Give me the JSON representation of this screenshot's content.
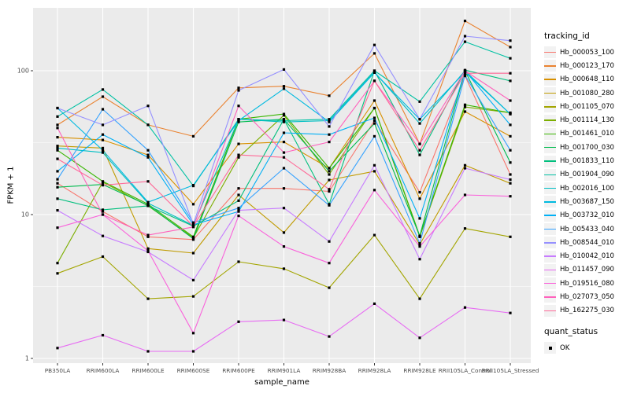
{
  "figure": {
    "y_axis": {
      "title": "FPKM + 1",
      "tick_labels": [
        "1",
        "10",
        "100"
      ]
    },
    "x_axis": {
      "title": "sample_name"
    },
    "legend": {
      "tracking_title": "tracking_id",
      "quant_title": "quant_status",
      "quant_item_label": "OK"
    },
    "colors": {
      "panel_background": "#EBEBEB",
      "gridline": "#FFFFFF",
      "axis_text": "#4D4D4D",
      "tick_mark": "#333333",
      "point": "#000000",
      "legend_key_background": "#F2F2F2"
    }
  },
  "chart_data": {
    "type": "line",
    "title": "",
    "xlabel": "sample_name",
    "ylabel": "FPKM + 1",
    "y_scale": "log10",
    "ylim": [
      1,
      300
    ],
    "y_major_ticks": [
      1,
      10,
      100
    ],
    "y_minor_ticks": [
      3.162,
      31.62
    ],
    "grid": true,
    "legend_position": "right",
    "point_marker": "filled-black-square",
    "quant_status": "OK",
    "categories": [
      "PB350LA",
      "RRIM600LA",
      "RRIM600LE",
      "RRIM600SE",
      "RRIM600PE",
      "RRIM901LA",
      "RRIM928BA",
      "RRIM928LA",
      "RRIM928LE",
      "RRII105LA_Control",
      "RRII105LA_Stressed"
    ],
    "series": [
      {
        "name": "Hb_000053_100",
        "color": "#F8766D",
        "values": [
          16.5,
          10.5,
          7.0,
          6.7,
          15.2,
          15.2,
          14.5,
          45,
          14.3,
          92,
          19
        ]
      },
      {
        "name": "Hb_000123_170",
        "color": "#EA8331",
        "values": [
          42,
          66,
          42,
          35,
          76,
          78,
          67,
          132,
          31,
          222,
          146
        ]
      },
      {
        "name": "Hb_000648_110",
        "color": "#D89000",
        "values": [
          34.5,
          33,
          26,
          11.8,
          31,
          32,
          21,
          62,
          12.9,
          52,
          35
        ]
      },
      {
        "name": "Hb_001080_280",
        "color": "#C09B00",
        "values": [
          30,
          29,
          5.8,
          5.4,
          13.7,
          7.5,
          17.4,
          20,
          6.2,
          22,
          16.5
        ]
      },
      {
        "name": "Hb_001105_070",
        "color": "#A3A500",
        "values": [
          3.9,
          5.1,
          2.6,
          2.7,
          4.7,
          4.2,
          3.1,
          7.2,
          2.6,
          8.0,
          7.0
        ]
      },
      {
        "name": "Hb_001114_130",
        "color": "#7CAE00",
        "values": [
          4.6,
          16.8,
          11.5,
          6.9,
          25,
          49,
          19,
          55,
          7.0,
          56,
          51
        ]
      },
      {
        "name": "Hb_001461_010",
        "color": "#39B600",
        "values": [
          28,
          17,
          11.8,
          7.0,
          46,
          50,
          21,
          55,
          7.1,
          58,
          51
        ]
      },
      {
        "name": "Hb_001700_030",
        "color": "#00BB4E",
        "values": [
          15.5,
          16.2,
          11.6,
          6.8,
          44,
          46,
          20,
          43,
          7.1,
          100,
          23
        ]
      },
      {
        "name": "Hb_001833_110",
        "color": "#00BF7D",
        "values": [
          12.9,
          10.8,
          11.5,
          8.3,
          12.5,
          46,
          11.8,
          100,
          26,
          101,
          85
        ]
      },
      {
        "name": "Hb_001904_090",
        "color": "#00C1A3",
        "values": [
          48,
          74,
          42,
          15.8,
          46,
          45,
          46,
          100,
          61,
          159,
          122
        ]
      },
      {
        "name": "Hb_002016_100",
        "color": "#00BFC4",
        "values": [
          29,
          27,
          12,
          8.4,
          46,
          44,
          45,
          98,
          43,
          100,
          50
        ]
      },
      {
        "name": "Hb_003687_150",
        "color": "#00BAE0",
        "values": [
          55,
          28,
          12.2,
          16,
          45,
          75,
          44,
          97,
          46,
          98,
          50
        ]
      },
      {
        "name": "Hb_003732_010",
        "color": "#00B0F6",
        "values": [
          20,
          36,
          25,
          8.5,
          10.5,
          37,
          36,
          47,
          9.4,
          100,
          42
        ]
      },
      {
        "name": "Hb_005433_040",
        "color": "#35A2FF",
        "values": [
          17.6,
          54,
          28,
          8.8,
          11.1,
          21,
          11.6,
          35,
          6.3,
          93,
          28
        ]
      },
      {
        "name": "Hb_008544_010",
        "color": "#9590FF",
        "values": [
          55,
          42,
          57,
          8.6,
          73,
          102,
          41,
          151,
          46,
          174,
          162
        ]
      },
      {
        "name": "Hb_010042_010",
        "color": "#C77CFF",
        "values": [
          10.7,
          7.1,
          5.5,
          3.5,
          10.7,
          11.1,
          6.5,
          22,
          4.9,
          21,
          17.5
        ]
      },
      {
        "name": "Hb_011457_090",
        "color": "#E76BF3",
        "values": [
          1.18,
          1.45,
          1.12,
          1.12,
          1.8,
          1.85,
          1.42,
          2.4,
          1.39,
          2.26,
          2.07
        ]
      },
      {
        "name": "Hb_019516_080",
        "color": "#FA62DB",
        "values": [
          8.1,
          10,
          5.6,
          1.5,
          9.8,
          6.0,
          4.6,
          14.8,
          6.0,
          13.7,
          13.4
        ]
      },
      {
        "name": "Hb_027073_050",
        "color": "#FF62BC",
        "values": [
          40,
          10,
          7.2,
          8.2,
          57,
          27,
          32,
          85,
          31,
          100,
          62
        ]
      },
      {
        "name": "Hb_162275_030",
        "color": "#FF6A98",
        "values": [
          24.4,
          16,
          17,
          8.3,
          26,
          25,
          15,
          85,
          28,
          96,
          96
        ]
      }
    ]
  }
}
